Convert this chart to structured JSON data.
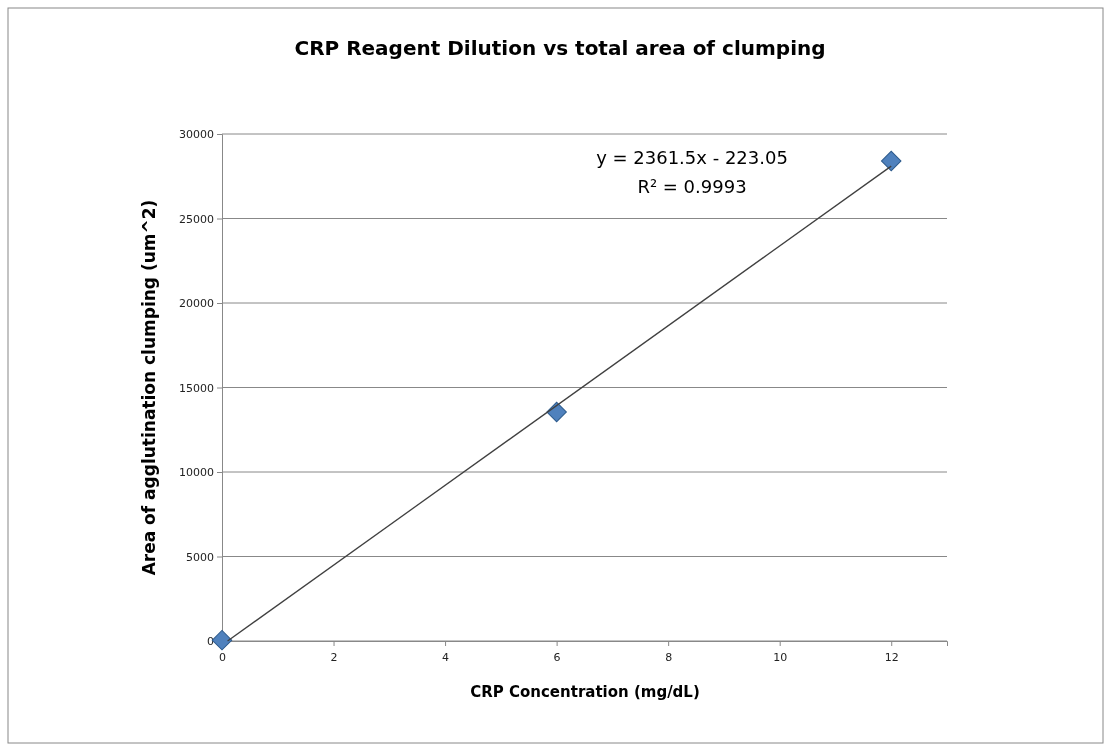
{
  "chart_data": {
    "type": "scatter",
    "title": "CRP Reagent Dilution  vs total area of clumping",
    "xlabel": "CRP Concentration (mg/dL)",
    "ylabel": "Area of agglutination  clumping (um^2)",
    "x": [
      0,
      6,
      12
    ],
    "xlim": [
      0,
      13
    ],
    "xticks": [
      0,
      2,
      4,
      6,
      8,
      10,
      12
    ],
    "ylim": [
      0,
      30000
    ],
    "yticks": [
      0,
      5000,
      10000,
      15000,
      20000,
      25000,
      30000
    ],
    "grid": "y",
    "marker": "diamond",
    "series": [
      {
        "type": "scatter",
        "color": "#4f81bd",
        "values": [
          50,
          13550,
          28400
        ]
      },
      {
        "type": "line",
        "color": "#404040",
        "x": [
          0.1,
          12
        ],
        "values": [
          0,
          28100
        ],
        "line_style": "solid",
        "marker": "none"
      }
    ],
    "annotations": [
      "y = 2361.5x - 223.05",
      "R² = 0.9993"
    ]
  }
}
